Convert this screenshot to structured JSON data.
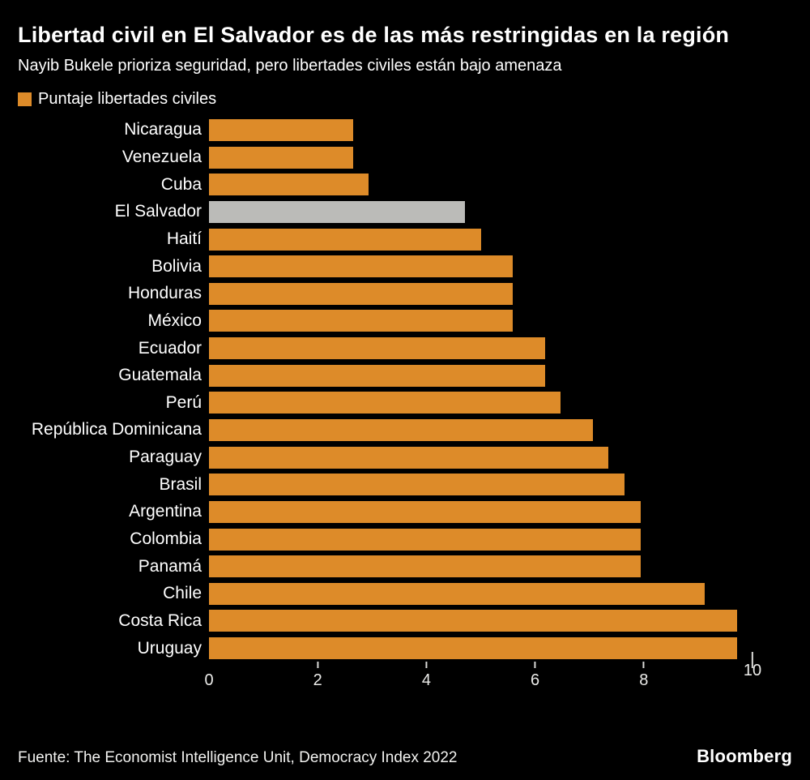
{
  "header": {
    "title": "Libertad civil en El Salvador es de las más restringidas en la región",
    "subtitle": "Nayib Bukele prioriza seguridad, pero libertades civiles están bajo amenaza"
  },
  "legend": {
    "label": "Puntaje libertades civiles",
    "swatch_color": "#dd8b29"
  },
  "chart_data": {
    "type": "bar",
    "orientation": "horizontal",
    "title": "Libertad civil en El Salvador es de las más restringidas en la región",
    "subtitle": "Nayib Bukele prioriza seguridad, pero libertades civiles están bajo amenaza",
    "legend_entries": [
      "Puntaje libertades civiles"
    ],
    "categories": [
      "Nicaragua",
      "Venezuela",
      "Cuba",
      "El Salvador",
      "Haití",
      "Bolivia",
      "Honduras",
      "México",
      "Ecuador",
      "Guatemala",
      "Perú",
      "República Dominicana",
      "Paraguay",
      "Brasil",
      "Argentina",
      "Colombia",
      "Panamá",
      "Chile",
      "Costa Rica",
      "Uruguay"
    ],
    "values": [
      2.65,
      2.65,
      2.94,
      4.71,
      5.0,
      5.59,
      5.59,
      5.59,
      6.18,
      6.18,
      6.47,
      7.06,
      7.35,
      7.65,
      7.94,
      7.94,
      7.94,
      9.12,
      9.71,
      9.71
    ],
    "bar_color": "#dd8b29",
    "highlight": {
      "category": "El Salvador",
      "color": "#bbbbb8"
    },
    "xlabel": "",
    "ylabel": "",
    "xlim": [
      0,
      10
    ],
    "x_ticks": [
      0,
      2,
      4,
      6,
      8,
      10
    ],
    "grid": false,
    "background_color": "#000000"
  },
  "footer": {
    "source": "Fuente: The Economist Intelligence Unit, Democracy Index 2022",
    "brand": "Bloomberg"
  }
}
